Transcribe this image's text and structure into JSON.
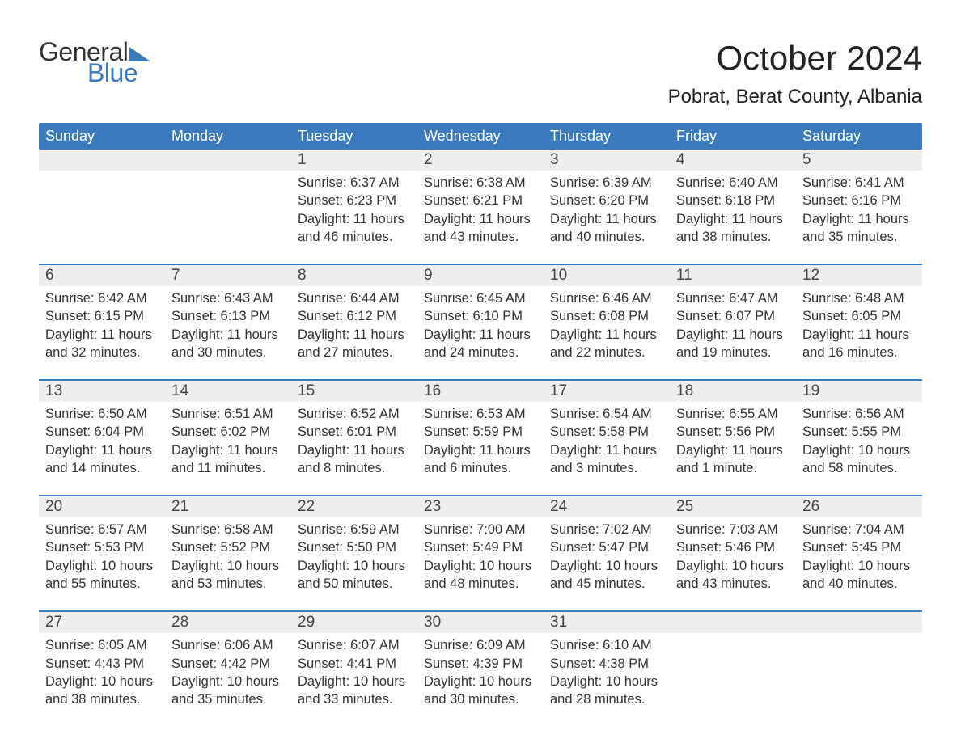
{
  "logo": {
    "word1": "General",
    "word2": "Blue"
  },
  "title": "October 2024",
  "location": "Pobrat, Berat County, Albania",
  "colors": {
    "brand_blue": "#3a7abd",
    "header_bg": "#3a7abd",
    "header_text": "#ffffff",
    "daynum_bg": "#eeeeee",
    "body_text": "#333333",
    "background": "#ffffff"
  },
  "dow": [
    "Sunday",
    "Monday",
    "Tuesday",
    "Wednesday",
    "Thursday",
    "Friday",
    "Saturday"
  ],
  "weeks": [
    [
      {
        "n": "",
        "sr": "",
        "ss": "",
        "dl1": "",
        "dl2": ""
      },
      {
        "n": "",
        "sr": "",
        "ss": "",
        "dl1": "",
        "dl2": ""
      },
      {
        "n": "1",
        "sr": "Sunrise: 6:37 AM",
        "ss": "Sunset: 6:23 PM",
        "dl1": "Daylight: 11 hours",
        "dl2": "and 46 minutes."
      },
      {
        "n": "2",
        "sr": "Sunrise: 6:38 AM",
        "ss": "Sunset: 6:21 PM",
        "dl1": "Daylight: 11 hours",
        "dl2": "and 43 minutes."
      },
      {
        "n": "3",
        "sr": "Sunrise: 6:39 AM",
        "ss": "Sunset: 6:20 PM",
        "dl1": "Daylight: 11 hours",
        "dl2": "and 40 minutes."
      },
      {
        "n": "4",
        "sr": "Sunrise: 6:40 AM",
        "ss": "Sunset: 6:18 PM",
        "dl1": "Daylight: 11 hours",
        "dl2": "and 38 minutes."
      },
      {
        "n": "5",
        "sr": "Sunrise: 6:41 AM",
        "ss": "Sunset: 6:16 PM",
        "dl1": "Daylight: 11 hours",
        "dl2": "and 35 minutes."
      }
    ],
    [
      {
        "n": "6",
        "sr": "Sunrise: 6:42 AM",
        "ss": "Sunset: 6:15 PM",
        "dl1": "Daylight: 11 hours",
        "dl2": "and 32 minutes."
      },
      {
        "n": "7",
        "sr": "Sunrise: 6:43 AM",
        "ss": "Sunset: 6:13 PM",
        "dl1": "Daylight: 11 hours",
        "dl2": "and 30 minutes."
      },
      {
        "n": "8",
        "sr": "Sunrise: 6:44 AM",
        "ss": "Sunset: 6:12 PM",
        "dl1": "Daylight: 11 hours",
        "dl2": "and 27 minutes."
      },
      {
        "n": "9",
        "sr": "Sunrise: 6:45 AM",
        "ss": "Sunset: 6:10 PM",
        "dl1": "Daylight: 11 hours",
        "dl2": "and 24 minutes."
      },
      {
        "n": "10",
        "sr": "Sunrise: 6:46 AM",
        "ss": "Sunset: 6:08 PM",
        "dl1": "Daylight: 11 hours",
        "dl2": "and 22 minutes."
      },
      {
        "n": "11",
        "sr": "Sunrise: 6:47 AM",
        "ss": "Sunset: 6:07 PM",
        "dl1": "Daylight: 11 hours",
        "dl2": "and 19 minutes."
      },
      {
        "n": "12",
        "sr": "Sunrise: 6:48 AM",
        "ss": "Sunset: 6:05 PM",
        "dl1": "Daylight: 11 hours",
        "dl2": "and 16 minutes."
      }
    ],
    [
      {
        "n": "13",
        "sr": "Sunrise: 6:50 AM",
        "ss": "Sunset: 6:04 PM",
        "dl1": "Daylight: 11 hours",
        "dl2": "and 14 minutes."
      },
      {
        "n": "14",
        "sr": "Sunrise: 6:51 AM",
        "ss": "Sunset: 6:02 PM",
        "dl1": "Daylight: 11 hours",
        "dl2": "and 11 minutes."
      },
      {
        "n": "15",
        "sr": "Sunrise: 6:52 AM",
        "ss": "Sunset: 6:01 PM",
        "dl1": "Daylight: 11 hours",
        "dl2": "and 8 minutes."
      },
      {
        "n": "16",
        "sr": "Sunrise: 6:53 AM",
        "ss": "Sunset: 5:59 PM",
        "dl1": "Daylight: 11 hours",
        "dl2": "and 6 minutes."
      },
      {
        "n": "17",
        "sr": "Sunrise: 6:54 AM",
        "ss": "Sunset: 5:58 PM",
        "dl1": "Daylight: 11 hours",
        "dl2": "and 3 minutes."
      },
      {
        "n": "18",
        "sr": "Sunrise: 6:55 AM",
        "ss": "Sunset: 5:56 PM",
        "dl1": "Daylight: 11 hours",
        "dl2": "and 1 minute."
      },
      {
        "n": "19",
        "sr": "Sunrise: 6:56 AM",
        "ss": "Sunset: 5:55 PM",
        "dl1": "Daylight: 10 hours",
        "dl2": "and 58 minutes."
      }
    ],
    [
      {
        "n": "20",
        "sr": "Sunrise: 6:57 AM",
        "ss": "Sunset: 5:53 PM",
        "dl1": "Daylight: 10 hours",
        "dl2": "and 55 minutes."
      },
      {
        "n": "21",
        "sr": "Sunrise: 6:58 AM",
        "ss": "Sunset: 5:52 PM",
        "dl1": "Daylight: 10 hours",
        "dl2": "and 53 minutes."
      },
      {
        "n": "22",
        "sr": "Sunrise: 6:59 AM",
        "ss": "Sunset: 5:50 PM",
        "dl1": "Daylight: 10 hours",
        "dl2": "and 50 minutes."
      },
      {
        "n": "23",
        "sr": "Sunrise: 7:00 AM",
        "ss": "Sunset: 5:49 PM",
        "dl1": "Daylight: 10 hours",
        "dl2": "and 48 minutes."
      },
      {
        "n": "24",
        "sr": "Sunrise: 7:02 AM",
        "ss": "Sunset: 5:47 PM",
        "dl1": "Daylight: 10 hours",
        "dl2": "and 45 minutes."
      },
      {
        "n": "25",
        "sr": "Sunrise: 7:03 AM",
        "ss": "Sunset: 5:46 PM",
        "dl1": "Daylight: 10 hours",
        "dl2": "and 43 minutes."
      },
      {
        "n": "26",
        "sr": "Sunrise: 7:04 AM",
        "ss": "Sunset: 5:45 PM",
        "dl1": "Daylight: 10 hours",
        "dl2": "and 40 minutes."
      }
    ],
    [
      {
        "n": "27",
        "sr": "Sunrise: 6:05 AM",
        "ss": "Sunset: 4:43 PM",
        "dl1": "Daylight: 10 hours",
        "dl2": "and 38 minutes."
      },
      {
        "n": "28",
        "sr": "Sunrise: 6:06 AM",
        "ss": "Sunset: 4:42 PM",
        "dl1": "Daylight: 10 hours",
        "dl2": "and 35 minutes."
      },
      {
        "n": "29",
        "sr": "Sunrise: 6:07 AM",
        "ss": "Sunset: 4:41 PM",
        "dl1": "Daylight: 10 hours",
        "dl2": "and 33 minutes."
      },
      {
        "n": "30",
        "sr": "Sunrise: 6:09 AM",
        "ss": "Sunset: 4:39 PM",
        "dl1": "Daylight: 10 hours",
        "dl2": "and 30 minutes."
      },
      {
        "n": "31",
        "sr": "Sunrise: 6:10 AM",
        "ss": "Sunset: 4:38 PM",
        "dl1": "Daylight: 10 hours",
        "dl2": "and 28 minutes."
      },
      {
        "n": "",
        "sr": "",
        "ss": "",
        "dl1": "",
        "dl2": ""
      },
      {
        "n": "",
        "sr": "",
        "ss": "",
        "dl1": "",
        "dl2": ""
      }
    ]
  ]
}
